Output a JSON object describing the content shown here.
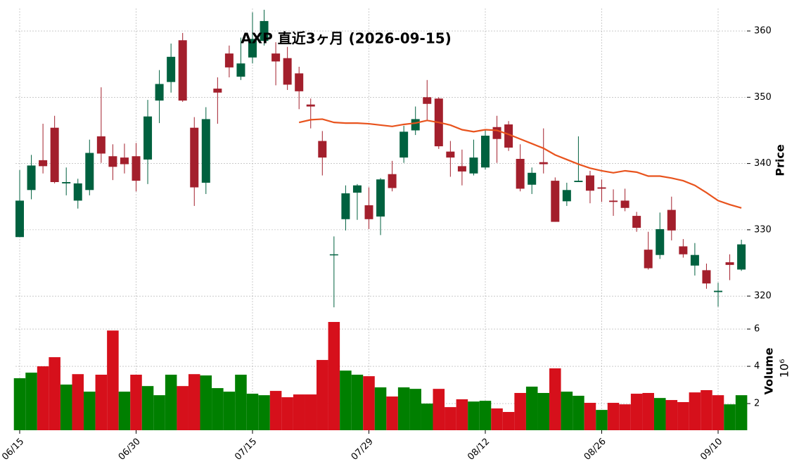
{
  "chart_data": {
    "type": "candlestick",
    "title": "AXP  直近3ヶ月  (2026-09-15)",
    "categories": [
      "06/15",
      null,
      null,
      null,
      null,
      null,
      null,
      null,
      null,
      null,
      "06/30",
      null,
      null,
      null,
      null,
      null,
      null,
      null,
      null,
      null,
      "07/15",
      null,
      null,
      null,
      null,
      null,
      null,
      null,
      null,
      null,
      "07/29",
      null,
      null,
      null,
      null,
      null,
      null,
      null,
      null,
      null,
      "08/12",
      null,
      null,
      null,
      null,
      null,
      null,
      null,
      null,
      null,
      "08/26",
      null,
      null,
      null,
      null,
      null,
      null,
      null,
      null,
      null,
      "09/10",
      null,
      null
    ],
    "open": [
      328.9,
      336.0,
      340.5,
      345.4,
      337.0,
      334.4,
      336.0,
      344.1,
      341.1,
      340.9,
      341.1,
      340.6,
      349.5,
      352.3,
      358.6,
      345.4,
      337.1,
      351.3,
      356.6,
      353.1,
      356.0,
      358.5,
      356.6,
      355.9,
      353.6,
      348.9,
      343.4,
      326.2,
      331.6,
      335.6,
      333.7,
      332.0,
      338.4,
      340.9,
      345.0,
      350.0,
      349.8,
      341.8,
      339.6,
      338.5,
      339.4,
      345.5,
      345.9,
      340.7,
      336.8,
      340.2,
      337.4,
      334.3,
      337.2,
      338.2,
      336.4,
      334.4,
      334.4,
      332.1,
      327.0,
      326.2,
      333.0,
      327.5,
      324.6,
      323.9,
      320.6,
      325.1,
      324.0
    ],
    "high": [
      339.0,
      341.3,
      346.0,
      347.2,
      339.4,
      337.7,
      343.6,
      351.5,
      342.9,
      343.0,
      343.1,
      349.6,
      354.1,
      358.1,
      359.7,
      347.0,
      348.5,
      353.0,
      357.8,
      359.0,
      362.8,
      363.2,
      358.3,
      357.6,
      354.6,
      349.8,
      344.9,
      329.0,
      336.7,
      336.9,
      336.4,
      337.8,
      340.4,
      345.7,
      348.6,
      352.6,
      350.0,
      343.4,
      342.1,
      343.6,
      345.1,
      347.2,
      346.4,
      342.9,
      339.4,
      345.3,
      337.9,
      337.1,
      344.1,
      338.9,
      337.6,
      336.1,
      336.2,
      332.7,
      329.7,
      332.6,
      335.0,
      328.6,
      328.0,
      324.9,
      322.0,
      326.3,
      328.5
    ],
    "low": [
      328.9,
      334.6,
      338.5,
      337.0,
      335.2,
      333.2,
      335.2,
      340.1,
      337.5,
      338.5,
      335.8,
      336.9,
      346.1,
      350.7,
      349.3,
      333.6,
      335.4,
      346.0,
      353.0,
      352.6,
      355.1,
      357.8,
      351.8,
      351.1,
      348.2,
      345.3,
      338.2,
      318.3,
      329.9,
      331.5,
      330.1,
      329.2,
      335.8,
      340.1,
      344.3,
      346.4,
      342.2,
      338.0,
      336.7,
      338.2,
      339.1,
      340.1,
      341.9,
      335.8,
      335.4,
      338.5,
      331.2,
      333.6,
      337.2,
      334.0,
      334.2,
      332.1,
      332.8,
      329.7,
      324.0,
      325.6,
      328.4,
      325.8,
      323.1,
      321.1,
      318.4,
      322.4,
      323.8
    ],
    "close": [
      334.4,
      339.7,
      339.6,
      337.2,
      337.2,
      337.0,
      341.6,
      341.5,
      339.5,
      339.9,
      337.4,
      347.1,
      352.0,
      356.1,
      349.5,
      336.4,
      346.7,
      350.7,
      354.5,
      355.1,
      358.8,
      361.5,
      355.4,
      351.9,
      350.9,
      348.6,
      340.9,
      326.3,
      335.5,
      336.7,
      331.6,
      337.6,
      336.3,
      344.8,
      346.7,
      349.0,
      342.6,
      340.9,
      338.8,
      340.9,
      344.2,
      343.7,
      342.4,
      336.2,
      338.6,
      339.9,
      331.2,
      336.0,
      337.4,
      335.9,
      336.2,
      334.2,
      333.3,
      330.3,
      324.2,
      330.1,
      329.9,
      326.3,
      326.2,
      321.9,
      320.8,
      324.7,
      327.8
    ],
    "up_color": "#00613f",
    "down_color": "#a31f2c",
    "ylim": [
      318.0,
      363.4
    ],
    "yticks": [
      320,
      330,
      340,
      350,
      360
    ],
    "y_label": "Price",
    "grid": true,
    "moving_average": {
      "color": "#e8531d",
      "values": [
        null,
        null,
        null,
        null,
        null,
        null,
        null,
        null,
        null,
        null,
        null,
        null,
        null,
        null,
        null,
        null,
        null,
        null,
        null,
        null,
        null,
        null,
        null,
        null,
        346.2,
        346.6,
        346.7,
        346.2,
        346.1,
        346.1,
        346.0,
        345.8,
        345.6,
        345.9,
        346.1,
        346.5,
        346.2,
        345.8,
        345.1,
        344.8,
        345.1,
        345.0,
        344.4,
        343.7,
        343.0,
        342.3,
        341.3,
        340.6,
        339.9,
        339.3,
        338.9,
        338.6,
        338.9,
        338.7,
        338.1,
        338.1,
        337.8,
        337.4,
        336.7,
        335.6,
        334.4,
        333.8,
        333.3
      ]
    },
    "volume": {
      "label": "Volume",
      "multiplier": "10⁶",
      "ylim": [
        0.57,
        6.87
      ],
      "yticks": [
        2,
        4,
        6
      ],
      "values": [
        3.36,
        3.66,
        4.0,
        4.49,
        3.02,
        3.58,
        2.64,
        3.55,
        5.92,
        2.64,
        3.55,
        2.94,
        2.45,
        3.55,
        2.94,
        3.58,
        3.51,
        2.83,
        2.64,
        3.55,
        2.53,
        2.45,
        2.68,
        2.34,
        2.49,
        2.49,
        4.34,
        6.38,
        3.77,
        3.55,
        3.47,
        2.87,
        2.38,
        2.87,
        2.79,
        2.0,
        2.79,
        1.81,
        2.23,
        2.11,
        2.15,
        1.74,
        1.55,
        2.57,
        2.91,
        2.57,
        3.89,
        2.64,
        2.42,
        2.04,
        1.66,
        2.04,
        1.96,
        2.53,
        2.57,
        2.3,
        2.19,
        2.08,
        2.6,
        2.72,
        2.45,
        1.96,
        2.45
      ],
      "colors": [
        "#007f00",
        "#007f00",
        "#d6101b",
        "#d6101b",
        "#007f00",
        "#d6101b",
        "#007f00",
        "#d6101b",
        "#d6101b",
        "#007f00",
        "#d6101b",
        "#007f00",
        "#007f00",
        "#007f00",
        "#d6101b",
        "#d6101b",
        "#007f00",
        "#007f00",
        "#007f00",
        "#007f00",
        "#007f00",
        "#007f00",
        "#d6101b",
        "#d6101b",
        "#d6101b",
        "#d6101b",
        "#d6101b",
        "#d6101b",
        "#007f00",
        "#007f00",
        "#d6101b",
        "#007f00",
        "#d6101b",
        "#007f00",
        "#007f00",
        "#007f00",
        "#d6101b",
        "#d6101b",
        "#d6101b",
        "#007f00",
        "#007f00",
        "#d6101b",
        "#d6101b",
        "#d6101b",
        "#007f00",
        "#007f00",
        "#d6101b",
        "#007f00",
        "#007f00",
        "#d6101b",
        "#007f00",
        "#d6101b",
        "#d6101b",
        "#d6101b",
        "#d6101b",
        "#007f00",
        "#d6101b",
        "#d6101b",
        "#d6101b",
        "#d6101b",
        "#d6101b",
        "#007f00",
        "#007f00"
      ]
    }
  }
}
